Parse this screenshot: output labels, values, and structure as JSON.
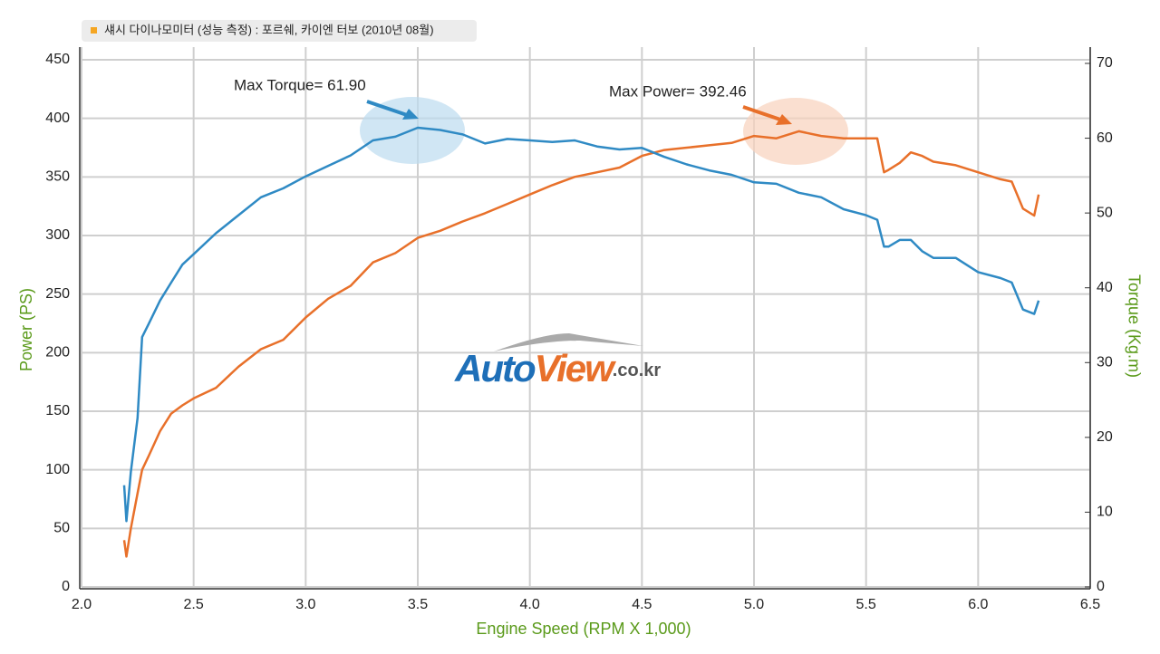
{
  "chart_data": {
    "type": "line",
    "title": "섀시 다이나모미터 (성능 측정) : 포르쉐, 카이엔 터보 (2010년 08월)",
    "xlabel": "Engine Speed (RPM X 1,000)",
    "ylabel": "Power (PS)",
    "y2label": "Torque (Kg.m)",
    "annotations": [
      "Max Torque= 61.90",
      "Max Power= 392.46"
    ],
    "logo": [
      "Auto",
      "View",
      ".co.kr"
    ],
    "grid": true,
    "xlim": [
      2,
      6.5
    ],
    "xticks": [
      {
        "value": 2,
        "label": "2.0"
      },
      2.5,
      {
        "value": 3,
        "label": "3.0"
      },
      3.5,
      {
        "value": 4,
        "label": "4.0"
      },
      4.5,
      {
        "value": 5,
        "label": "5.0"
      },
      5.5,
      {
        "value": 6,
        "label": "6.0"
      },
      6.5
    ],
    "ylim": [
      0,
      450
    ],
    "yticks": [
      0,
      50,
      100,
      150,
      200,
      250,
      300,
      350,
      400,
      450
    ],
    "y2lim": [
      0,
      70
    ],
    "y2ticks": [
      0,
      10,
      20,
      30,
      40,
      50,
      60,
      70
    ],
    "x": [
      2.19,
      2.2,
      2.22,
      2.25,
      2.27,
      2.3,
      2.35,
      2.4,
      2.45,
      2.5,
      2.6,
      2.7,
      2.8,
      2.9,
      3.0,
      3.1,
      3.2,
      3.3,
      3.4,
      3.5,
      3.6,
      3.7,
      3.8,
      3.9,
      4.0,
      4.1,
      4.2,
      4.3,
      4.4,
      4.5,
      4.6,
      4.7,
      4.8,
      4.9,
      5.0,
      5.1,
      5.2,
      5.3,
      5.4,
      5.5,
      5.55,
      5.58,
      5.6,
      5.65,
      5.7,
      5.75,
      5.8,
      5.9,
      6.0,
      6.1,
      6.15,
      6.2,
      6.25,
      6.27
    ],
    "series": [
      {
        "name": "Power",
        "color": "#e8702a",
        "values": [
          40,
          26,
          50,
          80,
          100,
          112,
          133,
          148,
          155,
          161,
          170,
          188,
          203,
          211,
          230,
          246,
          257,
          277,
          285,
          298,
          304,
          312,
          319,
          327,
          335,
          343,
          350,
          354,
          358,
          368,
          373,
          375,
          377,
          379,
          385,
          383,
          389,
          385,
          383,
          383,
          383,
          354,
          356,
          362,
          371,
          368,
          363,
          360,
          354,
          348,
          346,
          323,
          317,
          335
        ]
      },
      {
        "name": "Torque",
        "color": "#2f8ac4",
        "axis": "y2",
        "values": [
          13.6,
          8.8,
          15.4,
          22.6,
          33.4,
          35.2,
          38.3,
          40.7,
          43.1,
          44.5,
          47.3,
          49.7,
          52.1,
          53.3,
          54.9,
          56.3,
          57.7,
          59.7,
          60.2,
          61.4,
          61.1,
          60.5,
          59.3,
          59.9,
          59.7,
          59.5,
          59.7,
          58.9,
          58.5,
          58.7,
          57.5,
          56.5,
          55.7,
          55.1,
          54.1,
          53.9,
          52.7,
          52.1,
          50.5,
          49.7,
          49.1,
          45.5,
          45.5,
          46.4,
          46.4,
          44.9,
          44.0,
          44.0,
          42.1,
          41.3,
          40.7,
          37.1,
          36.5,
          38.3
        ]
      }
    ]
  }
}
